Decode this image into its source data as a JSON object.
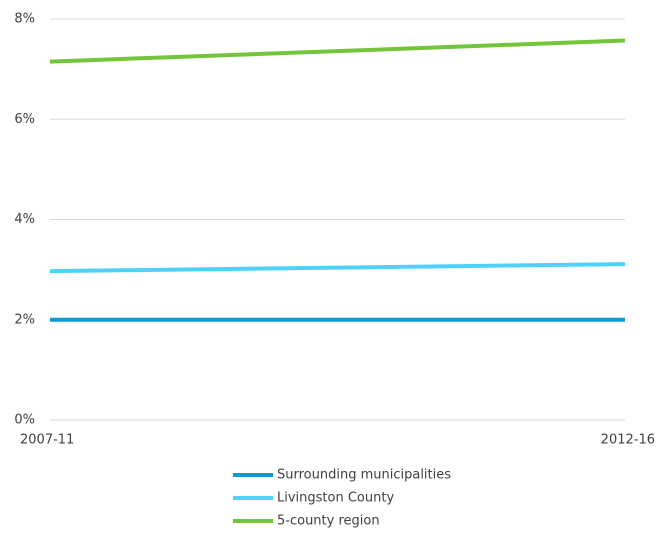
{
  "chart_data": {
    "type": "line",
    "categories": [
      "2007-11",
      "2012-16"
    ],
    "series": [
      {
        "name": "Surrounding municipalities",
        "color": "#0a9bd6",
        "values": [
          2.0,
          2.0
        ]
      },
      {
        "name": "Livingston County",
        "color": "#4fd2f7",
        "values": [
          2.97,
          3.11
        ]
      },
      {
        "name": "5-county region",
        "color": "#74c43c",
        "values": [
          7.15,
          7.57
        ]
      }
    ],
    "ylim": [
      0,
      8
    ],
    "yticks": [
      {
        "value": 0,
        "label": "0%"
      },
      {
        "value": 2,
        "label": "2%"
      },
      {
        "value": 4,
        "label": "4%"
      },
      {
        "value": 6,
        "label": "6%"
      },
      {
        "value": 8,
        "label": "8%"
      }
    ],
    "grid": true,
    "legend": "bottom"
  }
}
